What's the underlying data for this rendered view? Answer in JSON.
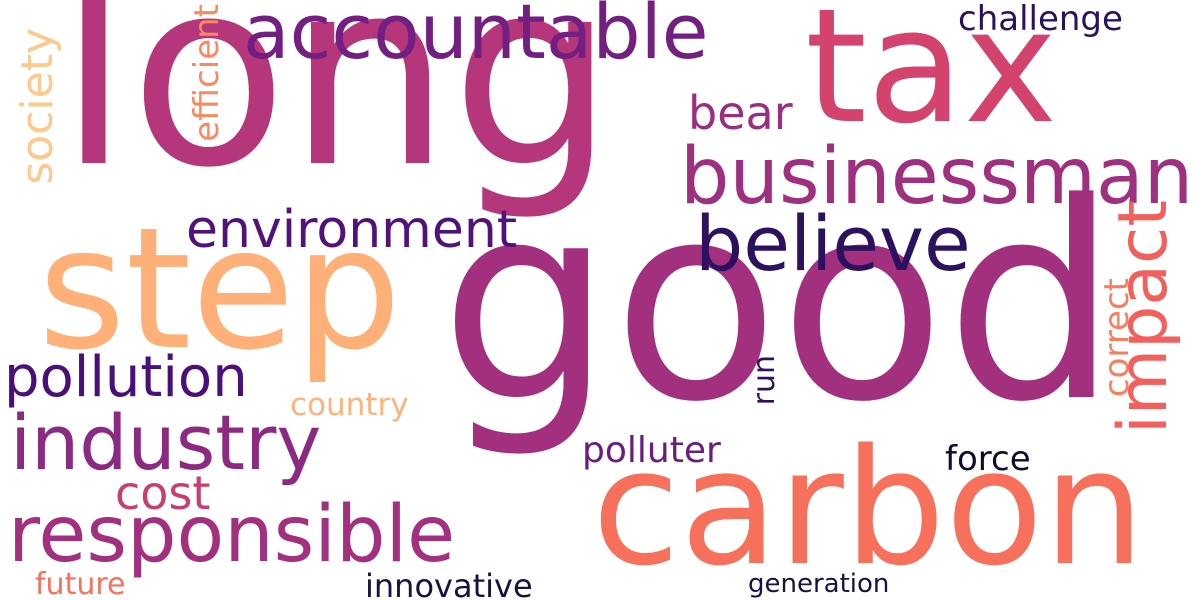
{
  "words": {
    "long": {
      "text": "long",
      "color": "#b5367a"
    },
    "good": {
      "text": "good",
      "color": "#a3307e"
    },
    "tax": {
      "text": "tax",
      "color": "#d3436e"
    },
    "carbon": {
      "text": "carbon",
      "color": "#f7705c"
    },
    "step": {
      "text": "step",
      "color": "#feb078"
    },
    "accountable": {
      "text": "accountable",
      "color": "#721f81"
    },
    "businessman": {
      "text": "businessman",
      "color": "#9f2f7f"
    },
    "believe": {
      "text": "believe",
      "color": "#2c115f"
    },
    "environment": {
      "text": "environment",
      "color": "#51127c"
    },
    "industry": {
      "text": "industry",
      "color": "#8c2981"
    },
    "responsible": {
      "text": "responsible",
      "color": "#a3307e"
    },
    "pollution": {
      "text": "pollution",
      "color": "#4a1079"
    },
    "impact": {
      "text": "impact",
      "color": "#f1605d"
    },
    "bear": {
      "text": "bear",
      "color": "#9c2e7f"
    },
    "cost": {
      "text": "cost",
      "color": "#c83e73"
    },
    "country": {
      "text": "country",
      "color": "#fdb37b"
    },
    "polluter": {
      "text": "polluter",
      "color": "#6a1c81"
    },
    "force": {
      "text": "force",
      "color": "#0f0b28"
    },
    "innovative": {
      "text": "innovative",
      "color": "#1a1042"
    },
    "future": {
      "text": "future",
      "color": "#f7725c"
    },
    "generation": {
      "text": "generation",
      "color": "#1a1042"
    },
    "challenge": {
      "text": "challenge",
      "color": "#2e1060"
    },
    "society": {
      "text": "society",
      "color": "#fec98d"
    },
    "efficient": {
      "text": "efficient",
      "color": "#fb8861"
    },
    "correct": {
      "text": "correct",
      "color": "#fa7d5e"
    },
    "run": {
      "text": "run",
      "color": "#2c115f"
    }
  }
}
